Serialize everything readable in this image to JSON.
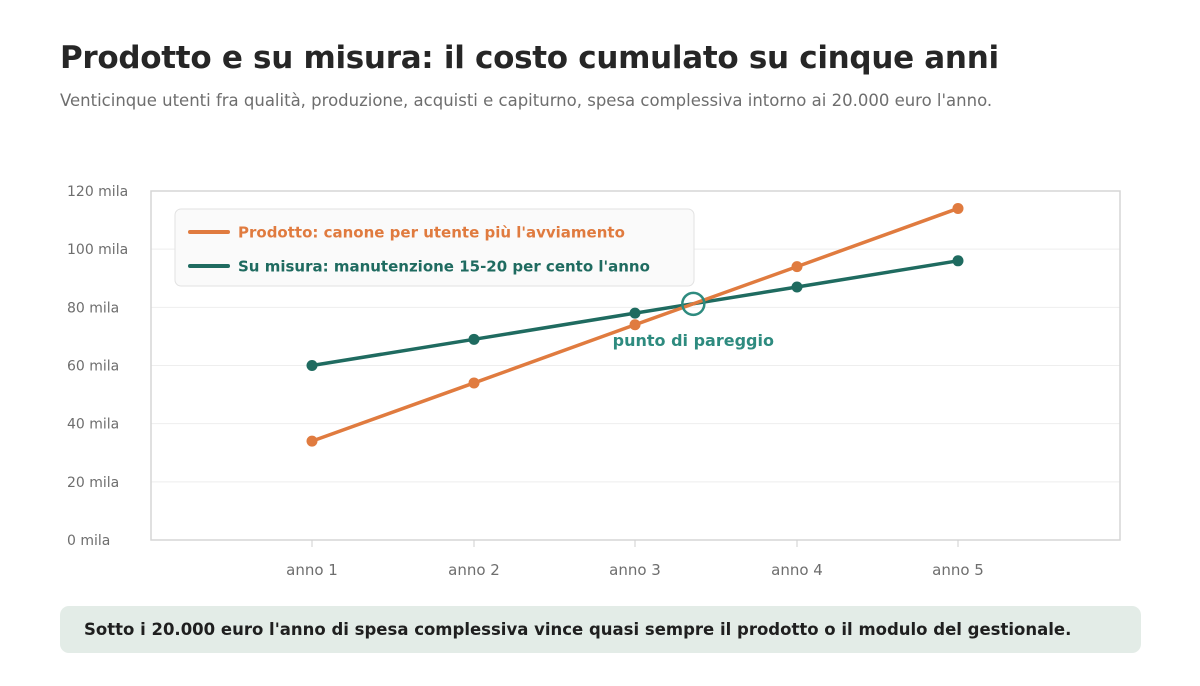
{
  "title": "Prodotto e su misura: il costo cumulato su cinque anni",
  "subtitle": "Venticinque utenti fra qualità, produzione, acquisti e capiturno, spesa complessiva intorno ai 20.000 euro l'anno.",
  "callout": "Sotto i 20.000 euro l'anno di spesa complessiva vince quasi sempre il prodotto o il modulo del gestionale.",
  "colors": {
    "prodotto": "#e07b3f",
    "su_misura": "#1f6b60",
    "annotation": "#2e8b7f"
  },
  "chart_data": {
    "type": "line",
    "categories": [
      "anno 1",
      "anno 2",
      "anno 3",
      "anno 4",
      "anno 5"
    ],
    "y_ticks": [
      "0 mila",
      "20 mila",
      "40 mila",
      "60 mila",
      "80 mila",
      "100 mila",
      "120 mila"
    ],
    "ylim": [
      0,
      120
    ],
    "grid": true,
    "legend_position": "top-left",
    "series": [
      {
        "name": "Prodotto: canone per utente più l'avviamento",
        "values": [
          34,
          54,
          74,
          94,
          114
        ]
      },
      {
        "name": "Su misura: manutenzione 15-20 per cento l'anno",
        "values": [
          60,
          69,
          78,
          87,
          96
        ]
      }
    ],
    "annotation": {
      "label": "punto di pareggio",
      "x": 3.36,
      "y": 81.2
    }
  }
}
